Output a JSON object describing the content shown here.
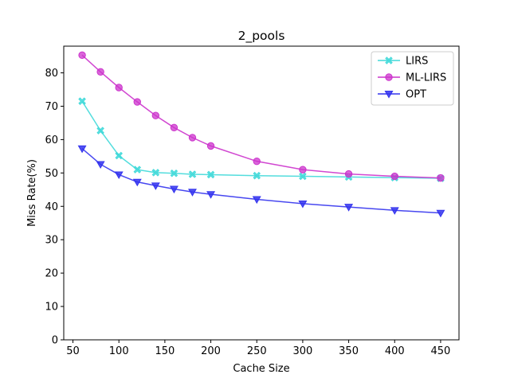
{
  "chart_data": {
    "type": "line",
    "title": "2_pools",
    "xlabel": "Cache Size",
    "ylabel": "Miss Rate(%)",
    "xlim": [
      40,
      470
    ],
    "ylim": [
      0,
      88
    ],
    "xticks": [
      50,
      100,
      150,
      200,
      250,
      300,
      350,
      400,
      450
    ],
    "yticks": [
      0,
      10,
      20,
      30,
      40,
      50,
      60,
      70,
      80
    ],
    "grid": false,
    "legend_position": "top-right",
    "x": [
      60,
      80,
      100,
      120,
      140,
      160,
      180,
      200,
      250,
      300,
      350,
      400,
      450
    ],
    "series": [
      {
        "name": "LIRS",
        "color": "#40d9d9",
        "marker": "x-filled",
        "values": [
          71.5,
          62.7,
          55.2,
          51.0,
          50.1,
          49.9,
          49.6,
          49.5,
          49.2,
          49.0,
          48.8,
          48.6,
          48.4
        ]
      },
      {
        "name": "ML-LIRS",
        "color": "#cc33cc",
        "marker": "circle",
        "values": [
          85.3,
          80.3,
          75.6,
          71.3,
          67.2,
          63.6,
          60.6,
          58.1,
          53.5,
          51.0,
          49.7,
          49.0,
          48.5
        ]
      },
      {
        "name": "OPT",
        "color": "#3333ee",
        "marker": "triangle-down",
        "values": [
          57.3,
          52.6,
          49.5,
          47.3,
          46.2,
          45.2,
          44.3,
          43.6,
          42.1,
          40.8,
          39.8,
          38.8,
          38.0
        ]
      }
    ]
  }
}
